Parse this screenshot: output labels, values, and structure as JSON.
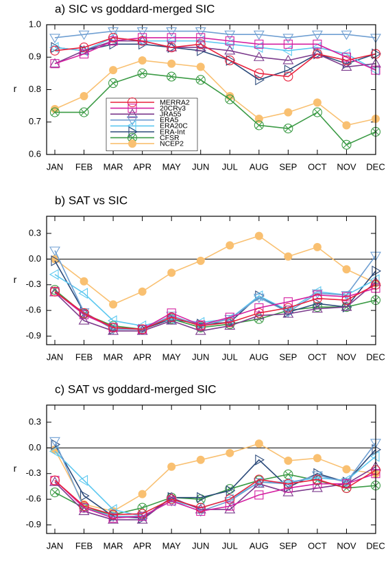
{
  "chart_data": [
    {
      "type": "line",
      "title": "a) SIC vs goddard-merged SIC",
      "y_label": "r",
      "categories": [
        "JAN",
        "FEB",
        "MAR",
        "APR",
        "MAY",
        "JUN",
        "JUL",
        "AUG",
        "SEP",
        "OCT",
        "NOV",
        "DEC"
      ],
      "ylim": [
        0.6,
        1
      ],
      "yticks": [
        0.6,
        0.7,
        0.8,
        0.9,
        {
          "value": 1,
          "label": "1.0"
        }
      ],
      "legend": "lower-left",
      "zero_line": false,
      "series": [
        {
          "name": "MERRA2",
          "color": "#e8203c",
          "marker": "circle",
          "values": [
            0.92,
            0.93,
            0.96,
            0.95,
            0.93,
            0.94,
            0.89,
            0.85,
            0.84,
            0.91,
            0.89,
            0.91
          ]
        },
        {
          "name": "20CRv3",
          "color": "#d41fa0",
          "marker": "square",
          "values": [
            0.88,
            0.91,
            0.95,
            0.96,
            0.96,
            0.96,
            0.95,
            0.94,
            0.94,
            0.94,
            0.9,
            0.86
          ]
        },
        {
          "name": "JRA55",
          "color": "#7b3a8c",
          "marker": "triangle-up",
          "values": [
            0.88,
            0.92,
            0.95,
            0.95,
            0.93,
            0.93,
            0.92,
            0.9,
            0.89,
            0.91,
            0.87,
            0.88
          ]
        },
        {
          "name": "ERA5",
          "color": "#6f9fd2",
          "marker": "triangle-down",
          "values": [
            0.96,
            0.97,
            0.98,
            0.98,
            0.98,
            0.98,
            0.97,
            0.97,
            0.96,
            0.97,
            0.97,
            0.96
          ]
        },
        {
          "name": "ERA20C",
          "color": "#5cc8f0",
          "marker": "triangle-left",
          "values": [
            0.93,
            0.92,
            0.96,
            0.95,
            0.95,
            0.95,
            0.94,
            0.93,
            0.92,
            0.93,
            0.91,
            0.86
          ]
        },
        {
          "name": "ERA-Int",
          "color": "#2b4a7a",
          "marker": "triangle-right",
          "values": [
            0.93,
            0.92,
            0.94,
            0.94,
            0.93,
            0.92,
            0.89,
            0.83,
            0.86,
            0.91,
            0.88,
            0.91
          ]
        },
        {
          "name": "CFSR",
          "color": "#3a9a44",
          "marker": "circle-x",
          "values": [
            0.73,
            0.73,
            0.82,
            0.85,
            0.84,
            0.83,
            0.77,
            0.69,
            0.68,
            0.73,
            0.63,
            0.67
          ]
        },
        {
          "name": "NCEP2",
          "color": "#f9c071",
          "marker": "dot",
          "values": [
            0.74,
            0.78,
            0.86,
            0.89,
            0.88,
            0.87,
            0.78,
            0.71,
            0.73,
            0.76,
            0.69,
            0.71
          ]
        }
      ]
    },
    {
      "type": "line",
      "title": "b) SAT vs SIC",
      "y_label": "r",
      "categories": [
        "JAN",
        "FEB",
        "MAR",
        "APR",
        "MAY",
        "JUN",
        "JUL",
        "AUG",
        "SEP",
        "OCT",
        "NOV",
        "DEC"
      ],
      "ylim": [
        -1,
        0.5
      ],
      "yticks": [
        -0.9,
        -0.6,
        -0.3,
        {
          "value": 0,
          "label": "0.0"
        },
        0.3
      ],
      "zero_line": true,
      "series": [
        {
          "color": "#e8203c",
          "marker": "circle",
          "values": [
            -0.38,
            -0.63,
            -0.8,
            -0.82,
            -0.68,
            -0.78,
            -0.74,
            -0.63,
            -0.57,
            -0.46,
            -0.48,
            -0.3
          ]
        },
        {
          "color": "#d41fa0",
          "marker": "square",
          "values": [
            -0.38,
            -0.65,
            -0.8,
            -0.82,
            -0.63,
            -0.77,
            -0.68,
            -0.57,
            -0.5,
            -0.42,
            -0.44,
            -0.34
          ]
        },
        {
          "color": "#7b3a8c",
          "marker": "triangle-up",
          "values": [
            -0.39,
            -0.72,
            -0.84,
            -0.84,
            -0.72,
            -0.84,
            -0.78,
            -0.66,
            -0.64,
            -0.58,
            -0.56,
            -0.27
          ]
        },
        {
          "color": "#6f9fd2",
          "marker": "triangle-down",
          "values": [
            0.1,
            -0.62,
            -0.82,
            -0.82,
            -0.66,
            -0.78,
            -0.7,
            -0.45,
            -0.62,
            -0.4,
            -0.42,
            0.04
          ]
        },
        {
          "color": "#5cc8f0",
          "marker": "triangle-left",
          "values": [
            -0.18,
            -0.4,
            -0.72,
            -0.78,
            -0.7,
            -0.74,
            -0.7,
            -0.43,
            -0.6,
            -0.38,
            -0.42,
            -0.24
          ]
        },
        {
          "color": "#2b4a7a",
          "marker": "triangle-right",
          "values": [
            -0.02,
            -0.62,
            -0.82,
            -0.82,
            -0.7,
            -0.76,
            -0.74,
            -0.43,
            -0.62,
            -0.52,
            -0.56,
            -0.14
          ]
        },
        {
          "color": "#3a9a44",
          "marker": "circle-x",
          "values": [
            -0.36,
            -0.64,
            -0.78,
            -0.82,
            -0.7,
            -0.8,
            -0.76,
            -0.7,
            -0.6,
            -0.56,
            -0.56,
            -0.48
          ]
        },
        {
          "color": "#f9c071",
          "marker": "dot",
          "values": [
            0.0,
            -0.26,
            -0.53,
            -0.38,
            -0.16,
            -0.02,
            0.16,
            0.27,
            0.03,
            0.14,
            -0.12,
            -0.28
          ]
        }
      ]
    },
    {
      "type": "line",
      "title": "c) SAT vs goddard-merged SIC",
      "y_label": "r",
      "categories": [
        "JAN",
        "FEB",
        "MAR",
        "APR",
        "MAY",
        "JUN",
        "JUL",
        "AUG",
        "SEP",
        "OCT",
        "NOV",
        "DEC"
      ],
      "ylim": [
        -1,
        0.5
      ],
      "yticks": [
        -0.9,
        -0.6,
        -0.3,
        {
          "value": 0,
          "label": "0.0"
        },
        0.3
      ],
      "zero_line": true,
      "series": [
        {
          "color": "#e8203c",
          "marker": "circle",
          "values": [
            -0.38,
            -0.68,
            -0.78,
            -0.77,
            -0.6,
            -0.7,
            -0.6,
            -0.37,
            -0.42,
            -0.37,
            -0.47,
            -0.26
          ]
        },
        {
          "color": "#d41fa0",
          "marker": "square",
          "values": [
            -0.38,
            -0.7,
            -0.82,
            -0.8,
            -0.62,
            -0.74,
            -0.68,
            -0.55,
            -0.47,
            -0.42,
            -0.42,
            -0.3
          ]
        },
        {
          "color": "#7b3a8c",
          "marker": "triangle-up",
          "values": [
            -0.4,
            -0.74,
            -0.84,
            -0.84,
            -0.58,
            -0.72,
            -0.72,
            -0.42,
            -0.52,
            -0.47,
            -0.42,
            -0.22
          ]
        },
        {
          "color": "#6f9fd2",
          "marker": "triangle-down",
          "values": [
            0.08,
            -0.7,
            -0.8,
            -0.8,
            -0.62,
            -0.74,
            -0.62,
            -0.4,
            -0.42,
            -0.32,
            -0.4,
            0.06
          ]
        },
        {
          "color": "#5cc8f0",
          "marker": "triangle-left",
          "values": [
            -0.04,
            -0.38,
            -0.72,
            -0.8,
            -0.62,
            -0.7,
            -0.6,
            -0.4,
            -0.4,
            -0.35,
            -0.38,
            -0.1
          ]
        },
        {
          "color": "#2b4a7a",
          "marker": "triangle-right",
          "values": [
            0.04,
            -0.56,
            -0.8,
            -0.82,
            -0.58,
            -0.58,
            -0.5,
            -0.14,
            -0.46,
            -0.3,
            -0.4,
            -0.02
          ]
        },
        {
          "color": "#3a9a44",
          "marker": "circle-x",
          "values": [
            -0.52,
            -0.7,
            -0.78,
            -0.7,
            -0.58,
            -0.6,
            -0.48,
            -0.38,
            -0.31,
            -0.38,
            -0.47,
            -0.44
          ]
        },
        {
          "color": "#f9c071",
          "marker": "dot",
          "values": [
            -0.02,
            -0.66,
            -0.74,
            -0.54,
            -0.22,
            -0.14,
            -0.06,
            0.05,
            -0.15,
            -0.12,
            -0.25,
            -0.3
          ]
        }
      ]
    }
  ]
}
